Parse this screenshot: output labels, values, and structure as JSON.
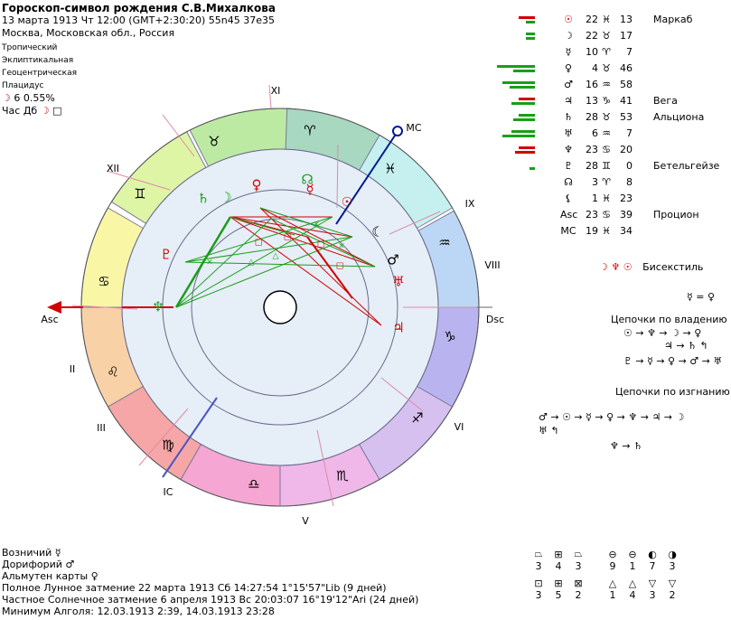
{
  "header": {
    "title": "Гороскоп-символ рождения С.В.Михалкова",
    "line1": "13 марта 1913  Чт  12:00 (GMT+2:30:20) 55n45  37e35",
    "line2": "Москва, Московская обл., Россия",
    "settings": [
      "Тропический",
      "Эклиптикальная",
      "Геоцентрическая",
      "Плацидус"
    ],
    "moon_phase": "6 0.55%",
    "hour_label": "Час Дб"
  },
  "wheel": {
    "houses": [
      "XI",
      "XII",
      "II",
      "III",
      "IC",
      "V",
      "VI",
      "VIII",
      "IX",
      "MC",
      "Asc",
      "Dsc"
    ],
    "signs": [
      "♉",
      "♈",
      "♓",
      "♒",
      "♑",
      "♐",
      "♏",
      "♎",
      "♍",
      "♌",
      "♋",
      "♊"
    ],
    "inner_planets": [
      "♄",
      "☽",
      "♀",
      "☊",
      "☿",
      "♆",
      "♇",
      "☾",
      "♂",
      "♅",
      "♃"
    ]
  },
  "planets": [
    {
      "sym": "☉",
      "deg": "22",
      "sign": "♓",
      "min": "13",
      "star": "Маркаб",
      "bars": [
        [
          "#d00000",
          18,
          0
        ],
        [
          "#1a9e1a",
          10,
          1
        ]
      ]
    },
    {
      "sym": "☽",
      "deg": "22",
      "sign": "♉",
      "min": "17",
      "star": "",
      "bars": [
        [
          "#1a9e1a",
          10,
          0
        ],
        [
          "#1a9e1a",
          10,
          1
        ]
      ]
    },
    {
      "sym": "☿",
      "deg": "10",
      "sign": "♈",
      "min": "7",
      "star": "",
      "bars": []
    },
    {
      "sym": "♀",
      "deg": "4",
      "sign": "♉",
      "min": "46",
      "star": "",
      "bars": [
        [
          "#1a9e1a",
          42,
          0
        ],
        [
          "#1a9e1a",
          24,
          1
        ]
      ]
    },
    {
      "sym": "♂",
      "deg": "16",
      "sign": "♒",
      "min": "58",
      "star": "",
      "bars": [
        [
          "#1a9e1a",
          36,
          0
        ],
        [
          "#1a9e1a",
          28,
          1
        ]
      ]
    },
    {
      "sym": "♃",
      "deg": "13",
      "sign": "♑",
      "min": "41",
      "star": "Вега",
      "bars": [
        [
          "#d00000",
          18,
          0
        ],
        [
          "#1a9e1a",
          26,
          1
        ]
      ]
    },
    {
      "sym": "♄",
      "deg": "28",
      "sign": "♉",
      "min": "53",
      "star": "Альциона",
      "bars": [
        [
          "#1a9e1a",
          18,
          0
        ],
        [
          "#1a9e1a",
          24,
          1
        ]
      ]
    },
    {
      "sym": "♅",
      "deg": "6",
      "sign": "♒",
      "min": "7",
      "star": "",
      "bars": [
        [
          "#1a9e1a",
          26,
          0
        ],
        [
          "#1a9e1a",
          36,
          1
        ]
      ]
    },
    {
      "sym": "♆",
      "deg": "23",
      "sign": "♋",
      "min": "20",
      "star": "",
      "bars": [
        [
          "#d00000",
          18,
          0
        ],
        [
          "#d00000",
          22,
          1
        ]
      ]
    },
    {
      "sym": "♇",
      "deg": "28",
      "sign": "♊",
      "min": "0",
      "star": "Бетельгейзе",
      "bars": [
        [
          "#1a9e1a",
          6,
          1
        ]
      ]
    },
    {
      "sym": "☊",
      "deg": "3",
      "sign": "♈",
      "min": "8",
      "star": "",
      "bars": []
    },
    {
      "sym": "⚸",
      "deg": "1",
      "sign": "♓",
      "min": "23",
      "star": "",
      "bars": []
    },
    {
      "sym": "Asc",
      "deg": "23",
      "sign": "♋",
      "min": "39",
      "star": "Процион",
      "bars": []
    },
    {
      "sym": "MC",
      "deg": "19",
      "sign": "♓",
      "min": "34",
      "star": "",
      "bars": []
    }
  ],
  "right": {
    "bisextile_label": "Бисекстиль",
    "bisextile_syms": "☽ ♆ ☉",
    "mercury_eq": "☿ = ♀",
    "chains_ownership": "Цепочки по владению",
    "chain_o1": "☉ → ♆ → ☽ → ♀",
    "chain_o2": "♃ → ♄ ↰",
    "chain_o3": "♇ → ☿ → ♀ → ♂ → ♅",
    "chains_exile": "Цепочки по изгнанию",
    "chain_e1": "♂ → ☉ → ☿ → ♀ → ♆ → ♃ → ☽",
    "chain_e2": "♅ ↰",
    "chain_e3": "♆ → ♄",
    "groups": {
      "row1_syms": [
        "⏢",
        "⊞",
        "⏢",
        "⊖",
        "⊖",
        "◐",
        "◑"
      ],
      "row1_vals": [
        "3",
        "4",
        "3",
        "9",
        "1",
        "7",
        "3"
      ],
      "row2_syms": [
        "⊡",
        "⊞",
        "⊠",
        "△",
        "△",
        "▽",
        "▽"
      ],
      "row2_vals": [
        "3",
        "5",
        "2",
        "1",
        "4",
        "3",
        "2"
      ]
    }
  },
  "footer": {
    "lines": [
      "Возничий  ☿",
      "Дорифорий  ♂",
      "Альмутен карты  ♀",
      "Полное Лунное затмение 22 марта 1913 Сб 14:27:54  1°15'57\"Lib (9 дней)",
      "Частное Солнечное затмение 6 апреля 1913 Вс 20:03:07 16°19'12\"Ari (24 дней)",
      "Минимум Алголя: 12.03.1913  2:39,  14.03.1913 23:28"
    ]
  },
  "colors": {
    "red": "#d00000",
    "green": "#1a9e1a",
    "blue": "#001a8c"
  }
}
